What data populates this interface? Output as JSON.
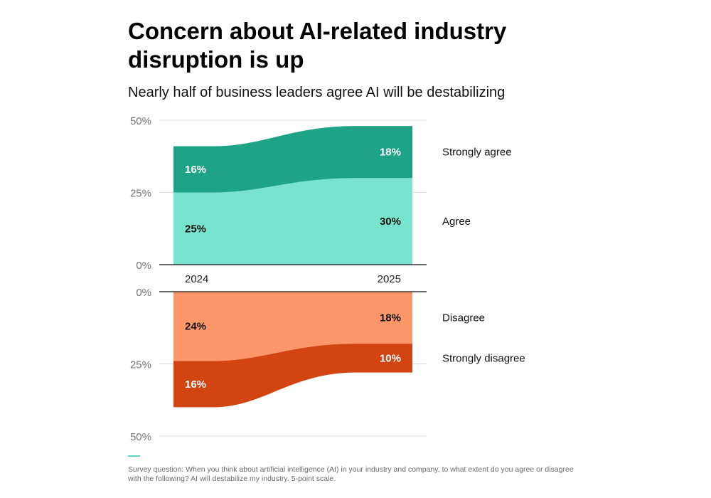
{
  "title": "Concern about AI-related industry disruption is up",
  "subtitle": "Nearly half of business leaders agree AI will be destabilizing",
  "footnote": "Survey question: When you think about artificial intelligence (AI) in your industry and company, to what extent do you agree or disagree with the following? AI will destabilize my industry. 5-point scale.",
  "chart_data": {
    "type": "area",
    "x": [
      "2024",
      "2025"
    ],
    "yticks": {
      "agree_panel": [
        "50%",
        "25%",
        "0%"
      ],
      "disagree_panel": [
        "0%",
        "25%",
        "50%"
      ]
    },
    "ylim": [
      0,
      50
    ],
    "grid": true,
    "legend_placement": "right",
    "series": [
      {
        "name": "Strongly agree",
        "panel": "agree",
        "values": [
          16,
          18
        ],
        "labels": [
          "16%",
          "18%"
        ],
        "color": "#1fa386",
        "label_color": "#ffffff"
      },
      {
        "name": "Agree",
        "panel": "agree",
        "values": [
          25,
          30
        ],
        "labels": [
          "25%",
          "30%"
        ],
        "color": "#78e4cf",
        "label_color": "#111111"
      },
      {
        "name": "Disagree",
        "panel": "disagree",
        "values": [
          24,
          18
        ],
        "labels": [
          "24%",
          "18%"
        ],
        "color": "#fd9668",
        "label_color": "#111111"
      },
      {
        "name": "Strongly disagree",
        "panel": "disagree",
        "values": [
          16,
          10
        ],
        "labels": [
          "16%",
          "10%"
        ],
        "color": "#d24512",
        "label_color": "#ffffff"
      }
    ]
  }
}
